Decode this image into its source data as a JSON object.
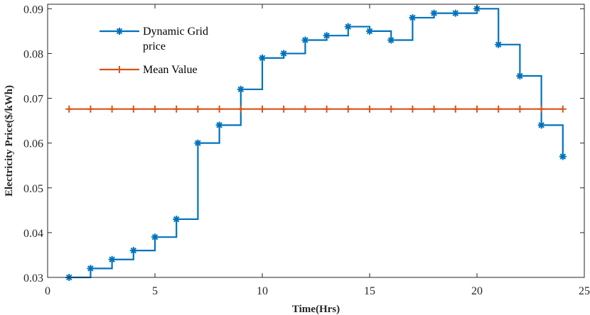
{
  "chart_data": {
    "type": "line",
    "title": "",
    "xlabel": "Time(Hrs)",
    "ylabel": "Electricity Price($/kWh)",
    "xlim": [
      0,
      25
    ],
    "ylim": [
      0.03,
      0.091
    ],
    "xticks": [
      0,
      5,
      10,
      15,
      20,
      25
    ],
    "yticks": [
      0.03,
      0.04,
      0.05,
      0.06,
      0.07,
      0.08,
      0.09
    ],
    "ytick_labels": [
      "0.03",
      "0.04",
      "0.05",
      "0.06",
      "0.07",
      "0.08",
      "0.09"
    ],
    "grid": false,
    "legend_position": "top-left",
    "series": [
      {
        "name": "Dynamic Grid price",
        "legend_lines": [
          "Dynamic Grid",
          "price"
        ],
        "style": "stairs",
        "marker": "asterisk",
        "color": "#0072BD",
        "x": [
          1,
          2,
          3,
          4,
          5,
          6,
          7,
          8,
          9,
          10,
          11,
          12,
          13,
          14,
          15,
          16,
          17,
          18,
          19,
          20,
          21,
          22,
          23,
          24
        ],
        "values": [
          0.03,
          0.032,
          0.034,
          0.036,
          0.039,
          0.043,
          0.06,
          0.064,
          0.072,
          0.079,
          0.08,
          0.083,
          0.084,
          0.086,
          0.085,
          0.083,
          0.088,
          0.089,
          0.089,
          0.09,
          0.082,
          0.075,
          0.064,
          0.057
        ]
      },
      {
        "name": "Mean Value",
        "legend_lines": [
          "Mean Value"
        ],
        "style": "line",
        "marker": "plus",
        "color": "#D95319",
        "x": [
          1,
          2,
          3,
          4,
          5,
          6,
          7,
          8,
          9,
          10,
          11,
          12,
          13,
          14,
          15,
          16,
          17,
          18,
          19,
          20,
          21,
          22,
          23,
          24
        ],
        "values": [
          0.0676,
          0.0676,
          0.0676,
          0.0676,
          0.0676,
          0.0676,
          0.0676,
          0.0676,
          0.0676,
          0.0676,
          0.0676,
          0.0676,
          0.0676,
          0.0676,
          0.0676,
          0.0676,
          0.0676,
          0.0676,
          0.0676,
          0.0676,
          0.0676,
          0.0676,
          0.0676,
          0.0676
        ]
      }
    ]
  }
}
